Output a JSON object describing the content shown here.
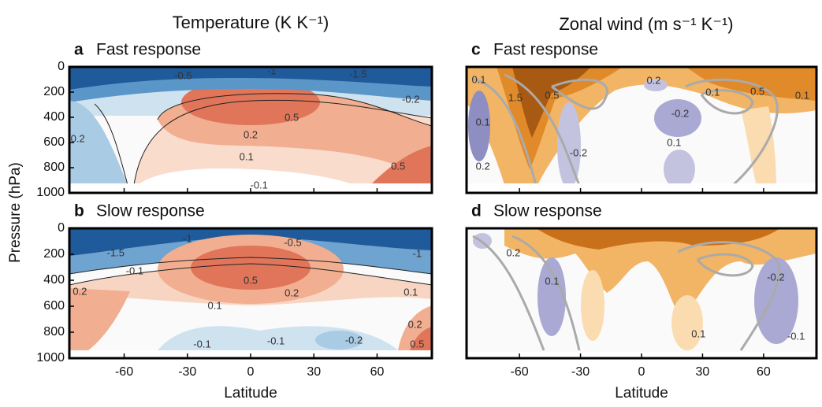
{
  "figure": {
    "column_titles": [
      "Temperature (K K⁻¹)",
      "Zonal wind (m s⁻¹ K⁻¹)"
    ],
    "ylabel": "Pressure (hPa)"
  },
  "chart_data": [
    {
      "type": "contour",
      "panel": "a",
      "title": "Fast response",
      "xlim": [
        -86,
        86
      ],
      "ylim": [
        0,
        1000
      ],
      "y_inverted": true,
      "yticks": [
        0,
        200,
        400,
        600,
        800,
        1000
      ],
      "contour_labels": [
        {
          "level": 0.5,
          "lat": 19.5,
          "p": 406
        },
        {
          "level": 0.2,
          "lat": 0,
          "p": 544
        },
        {
          "level": 0.1,
          "lat": -2,
          "p": 720
        },
        {
          "level": -0.1,
          "lat": 4,
          "p": 944
        },
        {
          "level": 0.2,
          "lat": -82,
          "p": 575
        },
        {
          "level": 0.5,
          "lat": 70,
          "p": 794
        },
        {
          "level": -0.5,
          "lat": -32,
          "p": 75
        },
        {
          "level": -1,
          "lat": 10,
          "p": 37
        },
        {
          "level": -1.5,
          "lat": 51,
          "p": 62
        },
        {
          "level": -0.2,
          "lat": 76,
          "p": 262
        }
      ]
    },
    {
      "type": "contour",
      "panel": "b",
      "title": "Slow response",
      "xlabel": "Latitude",
      "xlim": [
        -86,
        86
      ],
      "ylim": [
        0,
        1000
      ],
      "y_inverted": true,
      "xticks": [
        -60,
        -30,
        0,
        30,
        60
      ],
      "yticks": [
        0,
        200,
        400,
        600,
        800,
        1000
      ],
      "contour_labels": [
        {
          "level": -1.5,
          "lat": -64,
          "p": 194
        },
        {
          "level": -1,
          "lat": -30,
          "p": 85
        },
        {
          "level": -0.5,
          "lat": 20,
          "p": 115
        },
        {
          "level": -1,
          "lat": 79,
          "p": 200
        },
        {
          "level": -0.1,
          "lat": -55,
          "p": 333
        },
        {
          "level": 0.5,
          "lat": 0,
          "p": 406
        },
        {
          "level": 0.2,
          "lat": 19.5,
          "p": 503
        },
        {
          "level": 0.2,
          "lat": -81,
          "p": 491
        },
        {
          "level": 0.1,
          "lat": -17,
          "p": 600
        },
        {
          "level": 0.1,
          "lat": 76,
          "p": 497
        },
        {
          "level": -0.1,
          "lat": -23,
          "p": 897
        },
        {
          "level": -0.1,
          "lat": 12,
          "p": 873
        },
        {
          "level": -0.2,
          "lat": 49,
          "p": 867
        },
        {
          "level": 0.2,
          "lat": 78,
          "p": 745
        },
        {
          "level": 0.5,
          "lat": 79,
          "p": 897
        }
      ]
    },
    {
      "type": "contour",
      "panel": "c",
      "title": "Fast response",
      "xlim": [
        -86,
        86
      ],
      "ylim": [
        0,
        1000
      ],
      "y_inverted": true,
      "contour_labels": [
        {
          "level": 0.1,
          "lat": -80,
          "p": 106
        },
        {
          "level": 1.5,
          "lat": -62,
          "p": 250
        },
        {
          "level": 0.5,
          "lat": -44,
          "p": 231
        },
        {
          "level": 0.2,
          "lat": 6,
          "p": 112
        },
        {
          "level": 0.1,
          "lat": 35,
          "p": 206
        },
        {
          "level": 0.5,
          "lat": 57,
          "p": 200
        },
        {
          "level": 0.1,
          "lat": 79,
          "p": 231
        },
        {
          "level": 0.1,
          "lat": -78,
          "p": 444
        },
        {
          "level": -0.2,
          "lat": -31,
          "p": 688
        },
        {
          "level": -0.2,
          "lat": 19,
          "p": 375
        },
        {
          "level": 0.1,
          "lat": 16,
          "p": 606
        },
        {
          "level": 0.2,
          "lat": -78,
          "p": 794
        }
      ]
    },
    {
      "type": "contour",
      "panel": "d",
      "title": "Slow response",
      "xlabel": "Latitude",
      "xlim": [
        -86,
        86
      ],
      "ylim": [
        0,
        1000
      ],
      "y_inverted": true,
      "xticks": [
        -60,
        -30,
        0,
        30,
        60
      ],
      "contour_labels": [
        {
          "level": 0.2,
          "lat": -63,
          "p": 194
        },
        {
          "level": 0.1,
          "lat": -44,
          "p": 412
        },
        {
          "level": -0.2,
          "lat": 66,
          "p": 382
        },
        {
          "level": 0.1,
          "lat": 28,
          "p": 818
        },
        {
          "level": -0.1,
          "lat": 76,
          "p": 836
        }
      ]
    }
  ]
}
